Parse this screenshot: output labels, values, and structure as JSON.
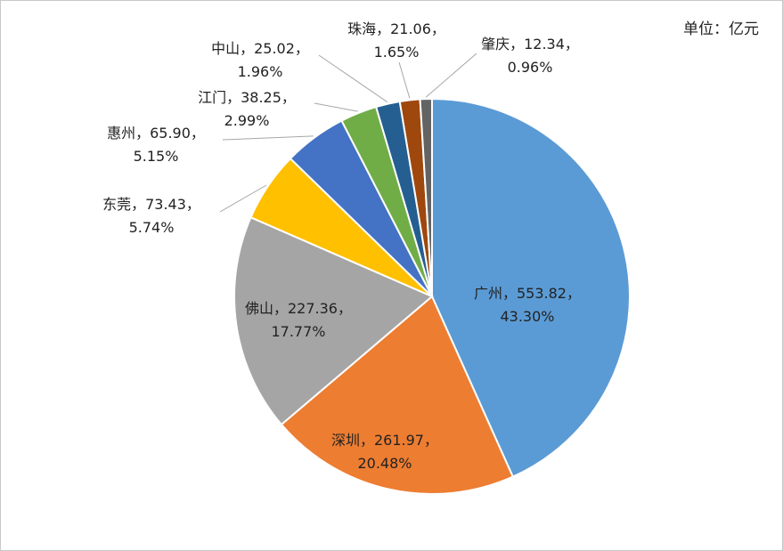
{
  "chart_data": {
    "type": "pie",
    "unit_label": "单位：亿元",
    "legend": "none",
    "slices": [
      {
        "name": "广州",
        "value": 553.82,
        "percent": "43.30%",
        "color": "#5B9BD5"
      },
      {
        "name": "深圳",
        "value": 261.97,
        "percent": "20.48%",
        "color": "#ED7D31"
      },
      {
        "name": "佛山",
        "value": 227.36,
        "percent": "17.77%",
        "color": "#A5A5A5"
      },
      {
        "name": "东莞",
        "value": 73.43,
        "percent": "5.74%",
        "color": "#FFC000"
      },
      {
        "name": "惠州",
        "value": 65.9,
        "percent": "5.15%",
        "color": "#4472C4"
      },
      {
        "name": "江门",
        "value": 38.25,
        "percent": "2.99%",
        "color": "#70AD47"
      },
      {
        "name": "中山",
        "value": 25.02,
        "percent": "1.96%",
        "color": "#255E91"
      },
      {
        "name": "珠海",
        "value": 21.06,
        "percent": "1.65%",
        "color": "#9E480E"
      },
      {
        "name": "肇庆",
        "value": 12.34,
        "percent": "0.96%",
        "color": "#636363"
      }
    ],
    "labels": [
      {
        "line1": "广州，553.82，",
        "line2": "43.30%"
      },
      {
        "line1": "深圳，261.97，",
        "line2": "20.48%"
      },
      {
        "line1": "佛山，227.36，",
        "line2": "17.77%"
      },
      {
        "line1": "东莞，73.43，",
        "line2": "5.74%"
      },
      {
        "line1": "惠州，65.90，",
        "line2": "5.15%"
      },
      {
        "line1": "江门，38.25，",
        "line2": "2.99%"
      },
      {
        "line1": "中山，25.02，",
        "line2": "1.96%"
      },
      {
        "line1": "珠海，21.06，",
        "line2": "1.65%"
      },
      {
        "line1": "肇庆，12.34，",
        "line2": "0.96%"
      }
    ]
  }
}
